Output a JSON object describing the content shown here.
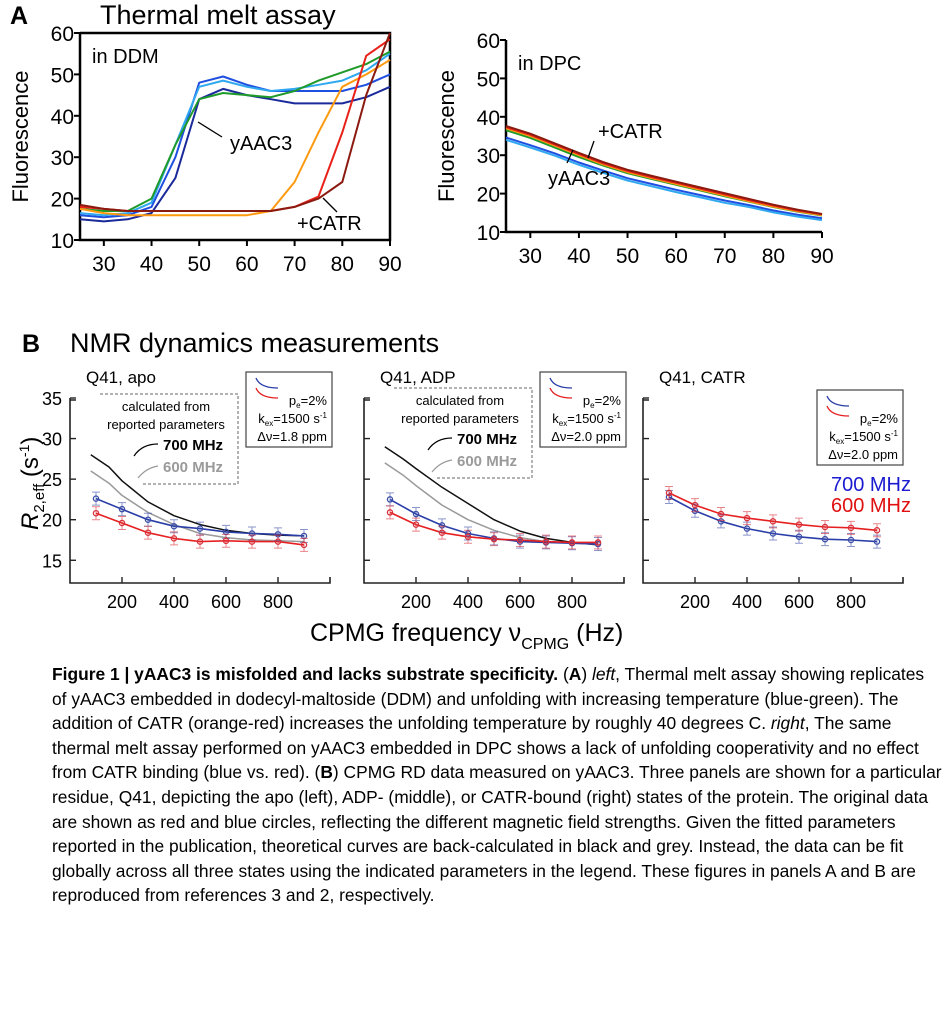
{
  "panel_a": {
    "letter": "A",
    "title": "Thermal melt assay"
  },
  "panel_b": {
    "letter": "B",
    "title": "NMR dynamics measurements",
    "xlabel_main": "CPMG frequency ν",
    "xlabel_sub": "CPMG",
    "xlabel_unit": " (Hz)",
    "ylabel_r": "R",
    "ylabel_sub": "2,eff",
    "ylabel_unit": " (s",
    "ylabel_sup": "-1",
    "ylabel_close": ")"
  },
  "colors": {
    "dark_blue": "#1a2a9a",
    "blue": "#1f4fe0",
    "light_blue": "#2fa8f0",
    "green": "#1e9a2a",
    "orange": "#ff9a10",
    "red": "#e8221a",
    "dark_red": "#8b1a10",
    "fit_blue": "#2a3ea8",
    "fit_red": "#e62020",
    "calc_black": "#111111",
    "calc_grey": "#9a9a9a"
  },
  "chart_data": [
    {
      "type": "line",
      "id": "ddm",
      "annotation": "in DDM",
      "ylabel": "Fluorescence",
      "xlim": [
        25,
        90
      ],
      "ylim": [
        10,
        60
      ],
      "xticks": [
        30,
        40,
        50,
        60,
        70,
        80,
        90
      ],
      "yticks": [
        10,
        20,
        30,
        40,
        50,
        60
      ],
      "labels": {
        "apo": "yAAC3",
        "catr": "+CATR"
      },
      "x": [
        25,
        30,
        35,
        40,
        45,
        50,
        55,
        60,
        65,
        70,
        75,
        80,
        85,
        90
      ],
      "series": [
        {
          "color": "#1a2a9a",
          "values": [
            15,
            14.5,
            15,
            16.5,
            25,
            44,
            46.5,
            45,
            44,
            43,
            43,
            43,
            44.5,
            47
          ]
        },
        {
          "color": "#1f4fe0",
          "values": [
            16,
            15.5,
            16,
            18,
            30,
            48,
            49.5,
            47.5,
            46,
            46,
            46,
            46,
            47.5,
            50
          ]
        },
        {
          "color": "#2fa8f0",
          "values": [
            16.5,
            16,
            16.5,
            19,
            33,
            47,
            48.5,
            47,
            46,
            46.5,
            47.5,
            48.5,
            51,
            55
          ]
        },
        {
          "color": "#1e9a2a",
          "values": [
            17.5,
            17,
            17,
            20,
            33,
            44,
            45.5,
            45,
            44.5,
            46,
            48.5,
            50.5,
            52.5,
            55.5
          ]
        },
        {
          "color": "#ff9a10",
          "values": [
            17.5,
            16.5,
            16,
            16,
            16,
            16,
            16,
            16,
            17,
            24,
            36,
            47,
            50,
            53.5
          ]
        },
        {
          "color": "#e8221a",
          "values": [
            18,
            17.5,
            17,
            17,
            17,
            17,
            17,
            17,
            17,
            18,
            20.5,
            36,
            54.5,
            58.5
          ]
        },
        {
          "color": "#8b1a10",
          "values": [
            18.5,
            17.5,
            17,
            17,
            17,
            17,
            17,
            17,
            17,
            18,
            20,
            24,
            45,
            60
          ]
        }
      ]
    },
    {
      "type": "line",
      "id": "dpc",
      "annotation": "in DPC",
      "ylabel": "Fluorescence",
      "xlim": [
        25,
        90
      ],
      "ylim": [
        10,
        60
      ],
      "xticks": [
        30,
        40,
        50,
        60,
        70,
        80,
        90
      ],
      "yticks": [
        10,
        20,
        30,
        40,
        50,
        60
      ],
      "labels": {
        "apo": "yAAC3",
        "catr": "+CATR"
      },
      "x": [
        25,
        30,
        35,
        40,
        45,
        50,
        55,
        60,
        65,
        70,
        75,
        80,
        85,
        90
      ],
      "series": [
        {
          "color": "#1e9a2a",
          "values": [
            36.5,
            34.5,
            32,
            29.5,
            27.3,
            25.3,
            23.8,
            22.3,
            20.8,
            19.3,
            17.9,
            16.5,
            15.3,
            14.3
          ]
        },
        {
          "color": "#ff9a10",
          "values": [
            37,
            35,
            32.5,
            30,
            27.6,
            25.6,
            24,
            22.5,
            21,
            19.5,
            18,
            16.6,
            15.4,
            14.4
          ]
        },
        {
          "color": "#e8221a",
          "values": [
            37.3,
            35.3,
            32.8,
            30.3,
            27.9,
            25.9,
            24.3,
            22.8,
            21.3,
            19.8,
            18.3,
            16.9,
            15.6,
            14.6
          ]
        },
        {
          "color": "#8b1a10",
          "values": [
            37.6,
            35.6,
            33.1,
            30.6,
            28.2,
            26.2,
            24.6,
            23.1,
            21.6,
            20.1,
            18.6,
            17.1,
            15.8,
            14.7
          ]
        },
        {
          "color": "#1f4fe0",
          "values": [
            34.6,
            32.6,
            30.5,
            28.1,
            26,
            24,
            22.5,
            21,
            19.6,
            18.2,
            17,
            15.6,
            14.5,
            13.6
          ]
        },
        {
          "color": "#2fa8f0",
          "values": [
            34,
            32,
            29.9,
            27.5,
            25.4,
            23.4,
            21.9,
            20.4,
            19,
            17.6,
            16.5,
            15.1,
            14,
            13.1
          ]
        }
      ]
    },
    {
      "type": "scatter",
      "id": "apo",
      "title": "Q41, apo",
      "xlim": [
        0,
        1000
      ],
      "ylim": [
        12.2,
        35
      ],
      "xticks": [
        200,
        400,
        600,
        800
      ],
      "yticks": [
        15,
        20,
        25,
        30,
        35
      ],
      "calc_box": {
        "line1": "calculated from",
        "line2": "reported parameters",
        "l700": "700 MHz",
        "l600": "600 MHz"
      },
      "legend": {
        "pe": "p",
        "pe_sub": "e",
        "pe_val": "=2%",
        "kex": "k",
        "kex_sub": "ex",
        "kex_val": "=1500 s",
        "kex_sup": "-1",
        "dv": "Δν=1.8 ppm"
      },
      "x": [
        100,
        200,
        300,
        400,
        500,
        600,
        700,
        800,
        900
      ],
      "points_700": [
        22.6,
        21.3,
        20.0,
        19.2,
        18.9,
        18.5,
        18.3,
        18.2,
        18.0
      ],
      "points_600": [
        20.8,
        19.6,
        18.4,
        17.7,
        17.3,
        17.4,
        17.3,
        17.3,
        16.9
      ],
      "error": 0.8,
      "calc_x": [
        80,
        150,
        200,
        300,
        400,
        500,
        600,
        700,
        800,
        900
      ],
      "calc_700": [
        28,
        26.5,
        24.8,
        22.2,
        20.5,
        19.4,
        18.7,
        18.3,
        18.1,
        18.0
      ],
      "calc_600": [
        26,
        24.5,
        23,
        20.9,
        19.4,
        18.3,
        17.8,
        17.5,
        17.4,
        17.3
      ]
    },
    {
      "type": "scatter",
      "id": "adp",
      "title": "Q41, ADP",
      "xlim": [
        0,
        1000
      ],
      "ylim": [
        12.2,
        35
      ],
      "xticks": [
        200,
        400,
        600,
        800
      ],
      "yticks": [
        15,
        20,
        25,
        30,
        35
      ],
      "calc_box": {
        "line1": "calculated from",
        "line2": "reported parameters",
        "l700": "700 MHz",
        "l600": "600 MHz"
      },
      "legend": {
        "pe": "p",
        "pe_sub": "e",
        "pe_val": "=2%",
        "kex": "k",
        "kex_sub": "ex",
        "kex_val": "=1500 s",
        "kex_sup": "-1",
        "dv": "Δν=2.0 ppm"
      },
      "x": [
        100,
        200,
        300,
        400,
        500,
        600,
        700,
        800,
        900
      ],
      "points_700": [
        22.5,
        20.7,
        19.3,
        18.3,
        17.7,
        17.3,
        17.2,
        17.1,
        17.0
      ],
      "points_600": [
        20.9,
        19.4,
        18.4,
        17.9,
        17.6,
        17.5,
        17.3,
        17.2,
        17.2
      ],
      "error": 0.8,
      "calc_x": [
        80,
        150,
        200,
        300,
        400,
        500,
        600,
        700,
        800,
        900
      ],
      "calc_700": [
        29,
        27.5,
        26.3,
        24.0,
        22.0,
        20.0,
        18.6,
        17.7,
        17.2,
        16.9
      ],
      "calc_600": [
        27,
        25.5,
        24.2,
        21.8,
        20.0,
        18.7,
        17.8,
        17.3,
        17.1,
        17.0
      ]
    },
    {
      "type": "scatter",
      "id": "catr",
      "title": "Q41, CATR",
      "xlim": [
        0,
        1000
      ],
      "ylim": [
        12.2,
        35
      ],
      "xticks": [
        200,
        400,
        600,
        800
      ],
      "yticks": [
        15,
        20,
        25,
        30,
        35
      ],
      "legend": {
        "pe": "p",
        "pe_sub": "e",
        "pe_val": "=2%",
        "kex": "k",
        "kex_sub": "ex",
        "kex_val": "=1500 s",
        "kex_sup": "-1",
        "dv": "Δν=2.0 ppm"
      },
      "field_labels": {
        "l700": "700 MHz",
        "l600": "600 MHz"
      },
      "x": [
        100,
        200,
        300,
        400,
        500,
        600,
        700,
        800,
        900
      ],
      "points_700": [
        22.8,
        21.1,
        19.8,
        18.9,
        18.3,
        17.9,
        17.6,
        17.5,
        17.3
      ],
      "points_600": [
        23.3,
        21.8,
        20.7,
        20.2,
        19.8,
        19.4,
        19.1,
        19.0,
        18.7
      ],
      "error": 0.8
    }
  ],
  "caption": [
    {
      "t": "Figure 1 | yAAC3 is misfolded and lacks substrate specificity.",
      "s": "b"
    },
    {
      "t": " (",
      "s": ""
    },
    {
      "t": "A",
      "s": "b"
    },
    {
      "t": ") ",
      "s": ""
    },
    {
      "t": "left",
      "s": "i"
    },
    {
      "t": ", Thermal melt assay showing replicates of yAAC3 embedded in dodecyl-maltoside (DDM) and unfolding with increasing temperature (blue-green). The addition of CATR (orange-red) increases the unfolding temperature by roughly 40 degrees C. ",
      "s": ""
    },
    {
      "t": "right",
      "s": "i"
    },
    {
      "t": ", The same thermal melt assay performed on yAAC3 embedded in DPC shows a lack of unfolding cooperativity and no effect from CATR binding (blue vs. red). (",
      "s": ""
    },
    {
      "t": "B",
      "s": "b"
    },
    {
      "t": ") CPMG RD data measured on yAAC3. Three panels are shown for a particular residue, Q41, depicting the apo (left), ADP- (middle), or CATR-bound (right) states of the protein. The original data are shown as red and blue circles, reflecting the different magnetic field strengths. Given the fitted parameters reported in the publication, theoretical curves are back-calculated in black and grey. Instead, the data can be fit globally across all three states using the indicated parameters in the legend. These figures in panels A and B are reproduced from references 3 and 2, respectively.",
      "s": ""
    }
  ]
}
